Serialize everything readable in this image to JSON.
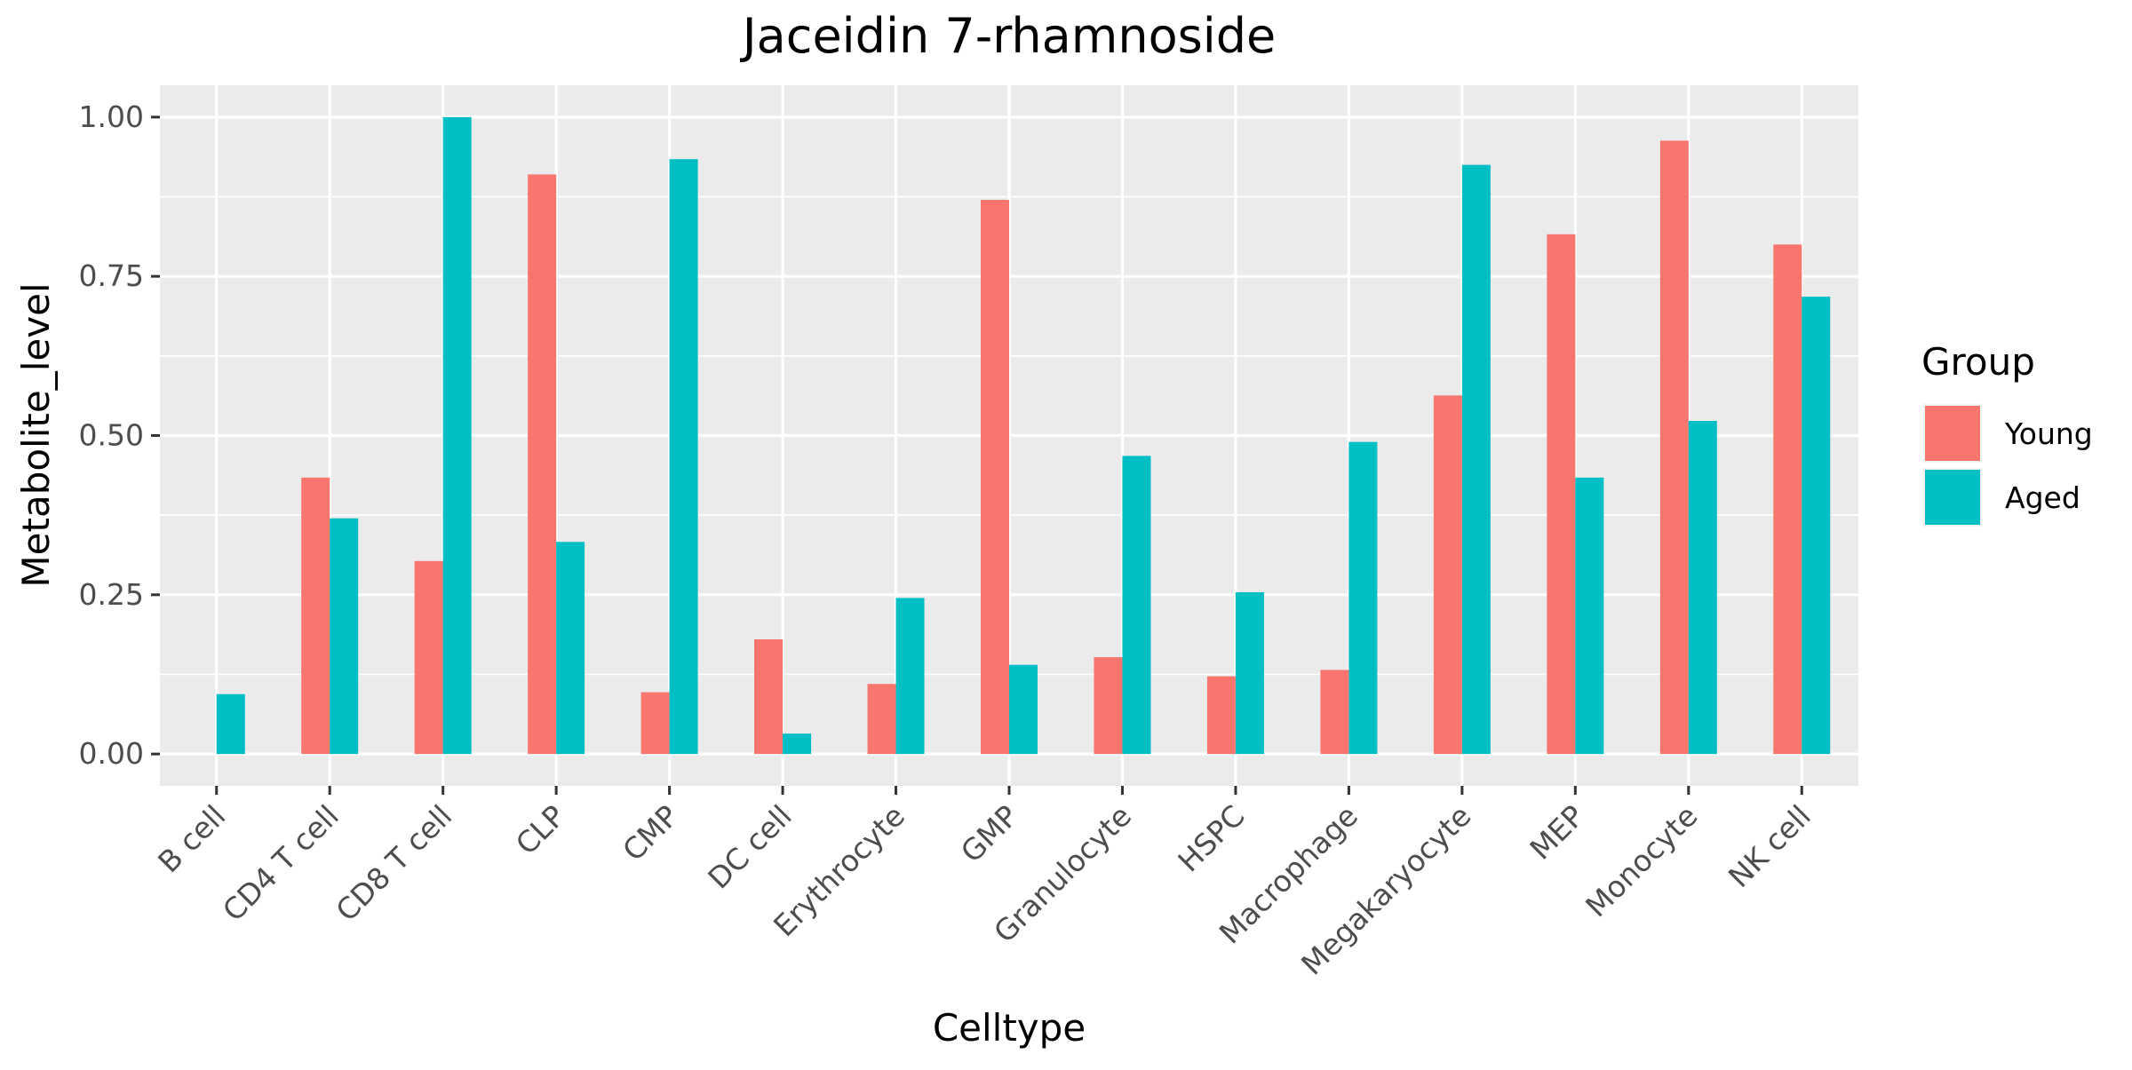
{
  "chart_data": {
    "type": "bar",
    "title": "Jaceidin 7-rhamnoside",
    "xlabel": "Celltype",
    "ylabel": "Metabolite_level",
    "categories": [
      "B cell",
      "CD4 T cell",
      "CD8 T cell",
      "CLP",
      "CMP",
      "DC cell",
      "Erythrocyte",
      "GMP",
      "Granulocyte",
      "HSPC",
      "Macrophage",
      "Megakaryocyte",
      "MEP",
      "Monocyte",
      "NK cell"
    ],
    "series": [
      {
        "name": "Young",
        "color": "#F8766D",
        "values": [
          0.0,
          0.434,
          0.303,
          0.91,
          0.097,
          0.18,
          0.11,
          0.87,
          0.152,
          0.122,
          0.132,
          0.563,
          0.816,
          0.963,
          0.8
        ]
      },
      {
        "name": "Aged",
        "color": "#00BFC4",
        "values": [
          0.094,
          0.37,
          1.0,
          0.333,
          0.934,
          0.032,
          0.245,
          0.14,
          0.468,
          0.254,
          0.49,
          0.925,
          0.434,
          0.523,
          0.718
        ]
      }
    ],
    "ylim": [
      -0.05,
      1.05
    ],
    "yticks": [
      "0.00",
      "0.25",
      "0.50",
      "0.75",
      "1.00"
    ],
    "grid": true,
    "legend": {
      "title": "Group",
      "position": "right"
    },
    "panel_background": "#EBEBEB",
    "grid_color": "#FFFFFF"
  }
}
